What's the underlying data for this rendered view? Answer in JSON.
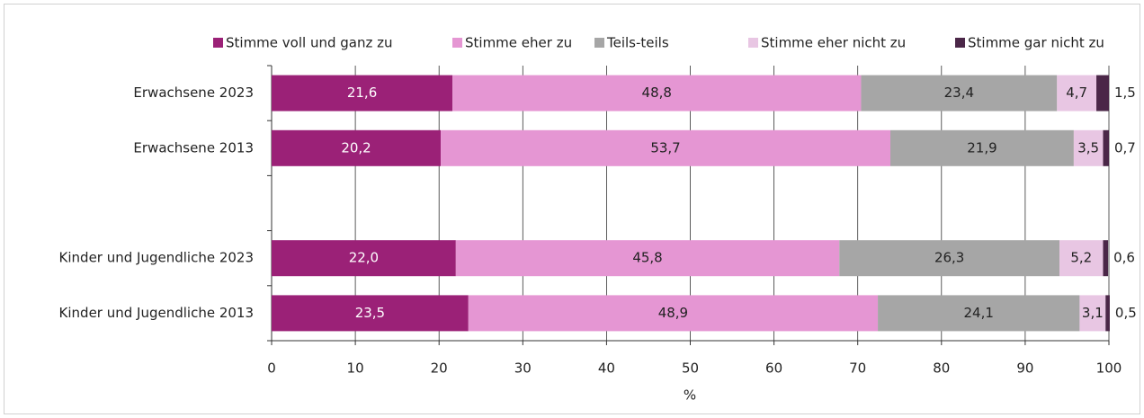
{
  "chart_data": {
    "type": "stacked_barh",
    "categories": [
      "Erwachsene 2023",
      "Erwachsene 2013",
      null,
      "Kinder und Jugendliche 2023",
      "Kinder und Jugendliche 2013"
    ],
    "series": [
      {
        "name": "Stimme voll und ganz zu",
        "color": "#9b2177",
        "values": [
          21.6,
          20.2,
          null,
          22.0,
          23.5
        ],
        "value_labels": [
          "21,6",
          "20,2",
          null,
          "22,0",
          "23,5"
        ]
      },
      {
        "name": "Stimme eher zu",
        "color": "#e596d3",
        "values": [
          48.8,
          53.7,
          null,
          45.8,
          48.9
        ],
        "value_labels": [
          "48,8",
          "53,7",
          null,
          "45,8",
          "48,9"
        ]
      },
      {
        "name": "Teils-teils",
        "color": "#a6a6a6",
        "values": [
          23.4,
          21.9,
          null,
          26.3,
          24.1
        ],
        "value_labels": [
          "23,4",
          "21,9",
          null,
          "26,3",
          "24,1"
        ]
      },
      {
        "name": "Stimme eher nicht zu",
        "color": "#e8c6e3",
        "values": [
          4.7,
          3.5,
          null,
          5.2,
          3.1
        ],
        "value_labels": [
          "4,7",
          "3,5",
          null,
          "5,2",
          "3,1"
        ]
      },
      {
        "name": "Stimme gar nicht zu",
        "color": "#4b2748",
        "values": [
          1.5,
          0.7,
          null,
          0.6,
          0.5
        ],
        "value_labels": [
          "1,5",
          "0,7",
          null,
          "0,6",
          "0,5"
        ]
      }
    ],
    "xlabel": "%",
    "xlim": [
      0,
      100
    ],
    "xticks": [
      0,
      10,
      20,
      30,
      40,
      50,
      60,
      70,
      80,
      90,
      100
    ],
    "grid": true,
    "legend": "top"
  }
}
